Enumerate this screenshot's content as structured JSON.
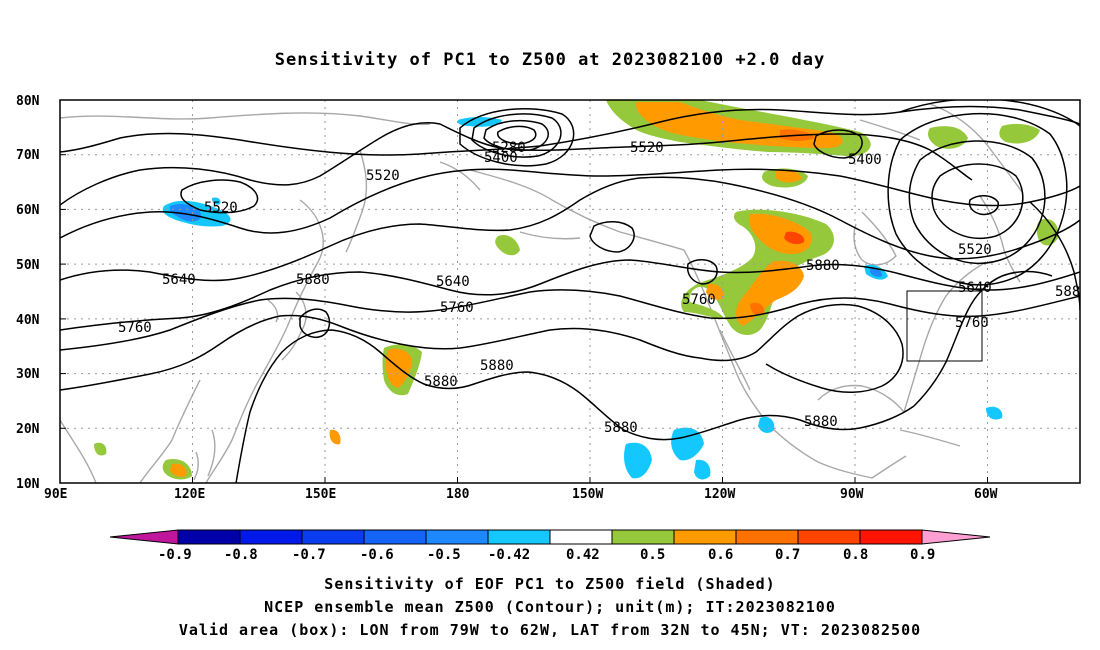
{
  "title": "Sensitivity of PC1 to Z500 at 2023082100 +2.0 day",
  "lat_labels": [
    "80N",
    "70N",
    "60N",
    "50N",
    "40N",
    "30N",
    "20N",
    "10N"
  ],
  "lon_labels": [
    "90E",
    "120E",
    "150E",
    "180",
    "150W",
    "120W",
    "90W",
    "60W"
  ],
  "contour_labels": [
    "5280",
    "5400",
    "5520",
    "5400",
    "5520",
    "5400",
    "5520",
    "5640",
    "5880",
    "5640",
    "5880",
    "5760",
    "5520",
    "5640",
    "5880",
    "5760",
    "5760",
    "5880",
    "5880",
    "5880",
    "5760",
    "5880",
    "588"
  ],
  "colorbar": {
    "labels": [
      "-0.9",
      "-0.8",
      "-0.7",
      "-0.6",
      "-0.5",
      "-0.42",
      "0.42",
      "0.5",
      "0.6",
      "0.7",
      "0.8",
      "0.9"
    ],
    "colors": {
      "low_end": "#c0169c",
      "neg_09": "#0000a8",
      "neg_08": "#0018e8",
      "neg_07": "#0a3cf0",
      "neg_06": "#1464f8",
      "neg_05": "#1e88ff",
      "neg_042": "#14c8ff",
      "neutral": "#ffffff",
      "pos_042": "#96c83c",
      "pos_05": "#ff9a00",
      "pos_06": "#ff7200",
      "pos_07": "#ff4400",
      "pos_08": "#ff1400",
      "high_end": "#ff9ed2"
    }
  },
  "captions": {
    "line1": "Sensitivity of EOF PC1 to Z500 field (Shaded)",
    "line2": "NCEP ensemble mean Z500 (Contour); unit(m); IT:2023082100",
    "line3": "Valid area (box): LON from 79W to 62W, LAT from 32N to 45N; VT: 2023082500"
  }
}
